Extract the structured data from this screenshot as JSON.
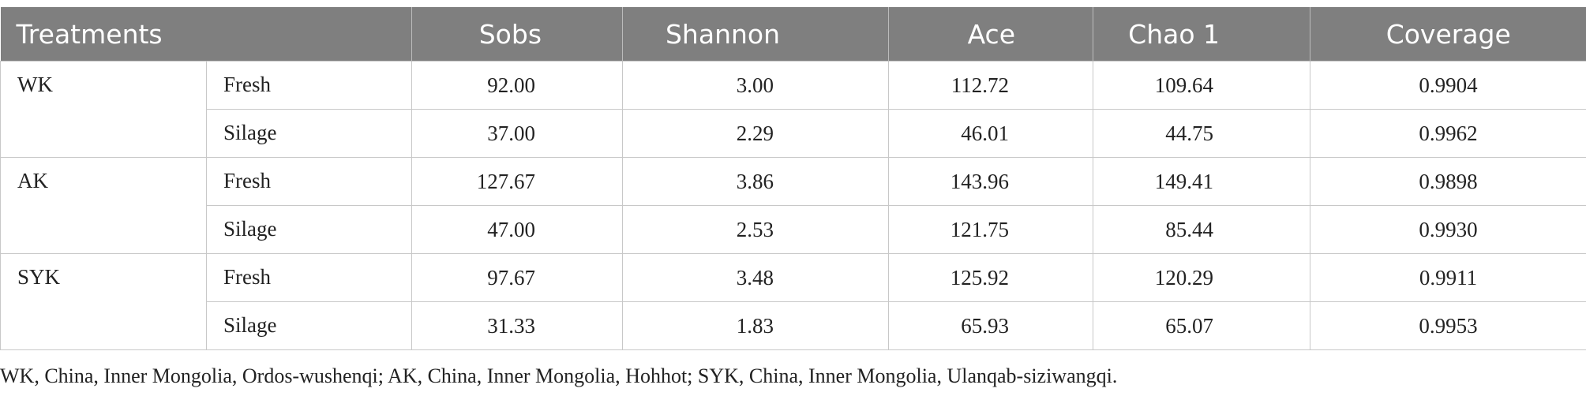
{
  "table": {
    "header": [
      "Treatments",
      "Sobs",
      "Shannon",
      "Ace",
      "Chao 1",
      "Coverage"
    ],
    "groups": [
      {
        "name": "WK",
        "rows": [
          {
            "label": "Fresh",
            "values": [
              "92.00",
              "3.00",
              "112.72",
              "109.64",
              "0.9904"
            ]
          },
          {
            "label": "Silage",
            "values": [
              "37.00",
              "2.29",
              "46.01",
              "44.75",
              "0.9962"
            ]
          }
        ]
      },
      {
        "name": "AK",
        "rows": [
          {
            "label": "Fresh",
            "values": [
              "127.67",
              "3.86",
              "143.96",
              "149.41",
              "0.9898"
            ]
          },
          {
            "label": "Silage",
            "values": [
              "47.00",
              "2.53",
              "121.75",
              "85.44",
              "0.9930"
            ]
          }
        ]
      },
      {
        "name": "SYK",
        "rows": [
          {
            "label": "Fresh",
            "values": [
              "97.67",
              "3.48",
              "125.92",
              "120.29",
              "0.9911"
            ]
          },
          {
            "label": "Silage",
            "values": [
              "31.33",
              "1.83",
              "65.93",
              "65.07",
              "0.9953"
            ]
          }
        ]
      }
    ]
  },
  "footnote": "WK, China, Inner Mongolia, Ordos-wushenqi; AK, China, Inner Mongolia, Hohhot; SYK, China, Inner Mongolia, Ulanqab-siziwangqi."
}
